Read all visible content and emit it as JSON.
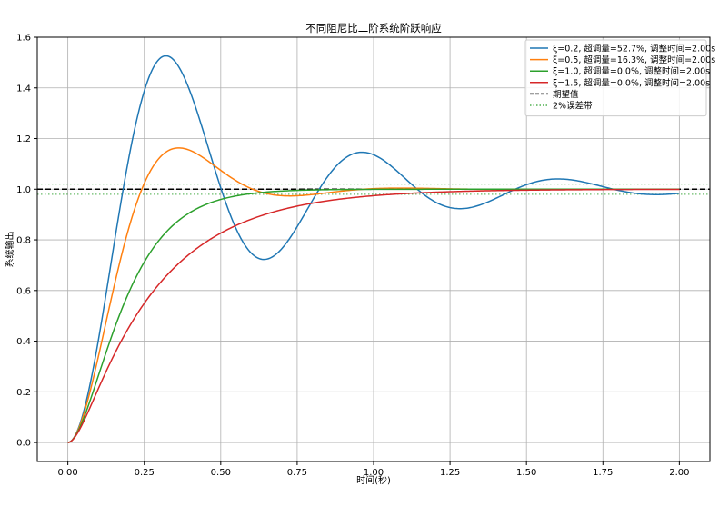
{
  "chart_data": {
    "type": "line",
    "title": "不同阻尼比二阶系统阶跃响应",
    "xlabel": "时间(秒)",
    "ylabel": "系统输出",
    "xlim": [
      -0.1,
      2.1
    ],
    "ylim": [
      -0.075,
      1.6
    ],
    "xticks": [
      0.0,
      0.25,
      0.5,
      0.75,
      1.0,
      1.25,
      1.5,
      1.75,
      2.0
    ],
    "xtick_labels": [
      "0.00",
      "0.25",
      "0.50",
      "0.75",
      "1.00",
      "1.25",
      "1.50",
      "1.75",
      "2.00"
    ],
    "yticks": [
      0.0,
      0.2,
      0.4,
      0.6,
      0.8,
      1.0,
      1.2,
      1.4,
      1.6
    ],
    "ytick_labels": [
      "0.0",
      "0.2",
      "0.4",
      "0.6",
      "0.8",
      "1.0",
      "1.2",
      "1.4",
      "1.6"
    ],
    "grid": true,
    "legend_position": "top-right",
    "omega_n": 10,
    "t_range": [
      0,
      2
    ],
    "series": [
      {
        "name": "ξ=0.2, 超调量=52.7%, 调整时间=2.00s",
        "zeta": 0.2,
        "color": "#1f77b4",
        "style": "solid"
      },
      {
        "name": "ξ=0.5, 超调量=16.3%, 调整时间=2.00s",
        "zeta": 0.5,
        "color": "#ff7f0e",
        "style": "solid"
      },
      {
        "name": "ξ=1.0, 超调量=0.0%, 调整时间=2.00s",
        "zeta": 1.0,
        "color": "#2ca02c",
        "style": "solid"
      },
      {
        "name": "ξ=1.5, 超调量=0.0%, 调整时间=2.00s",
        "zeta": 1.5,
        "color": "#d62728",
        "style": "solid"
      }
    ],
    "reference_lines": [
      {
        "name": "期望值",
        "y": 1.0,
        "color": "#000000",
        "style": "dashed"
      },
      {
        "name": "2%误差带",
        "y": [
          0.98,
          1.02
        ],
        "color": "#2ca02c",
        "style": "dotted"
      }
    ]
  }
}
